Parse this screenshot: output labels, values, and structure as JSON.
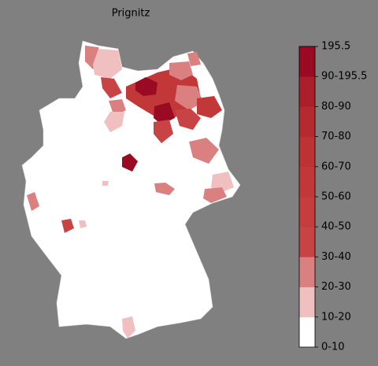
{
  "map": {
    "title": "Prignitz",
    "colorbar": {
      "labels": [
        "0-10",
        "10-20",
        "20-30",
        "30-40",
        "40-50",
        "50-60",
        "60-70",
        "70-80",
        "80-90",
        "90-195.5",
        "195.5"
      ],
      "colors": [
        "#ffffff",
        "#f0c0c0",
        "#da8080",
        "#c84444",
        "#c53d3d",
        "#c23838",
        "#bd3232",
        "#b52a2e",
        "#ab1f2a",
        "#9a0a22"
      ]
    }
  }
}
